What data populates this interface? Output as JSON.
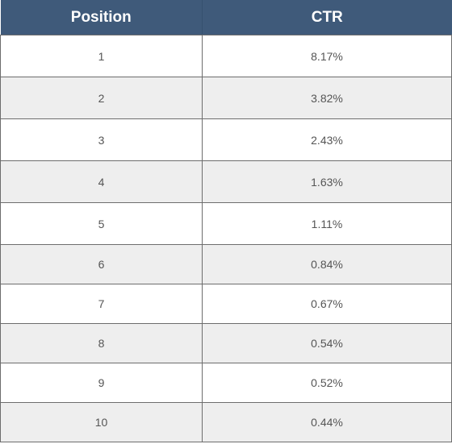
{
  "chart_data": {
    "type": "table",
    "columns": [
      "Position",
      "CTR"
    ],
    "rows": [
      {
        "position": "1",
        "ctr": "8.17%"
      },
      {
        "position": "2",
        "ctr": "3.82%"
      },
      {
        "position": "3",
        "ctr": "2.43%"
      },
      {
        "position": "4",
        "ctr": "1.63%"
      },
      {
        "position": "5",
        "ctr": "1.11%"
      },
      {
        "position": "6",
        "ctr": "0.84%"
      },
      {
        "position": "7",
        "ctr": "0.67%"
      },
      {
        "position": "8",
        "ctr": "0.54%"
      },
      {
        "position": "9",
        "ctr": "0.52%"
      },
      {
        "position": "10",
        "ctr": "0.44%"
      }
    ]
  },
  "colors": {
    "header_background": "#3f5a7a",
    "header_text": "#ffffff",
    "row_alt_background": "#eeeeee",
    "cell_text": "#555555",
    "border": "#6d6d6d"
  }
}
